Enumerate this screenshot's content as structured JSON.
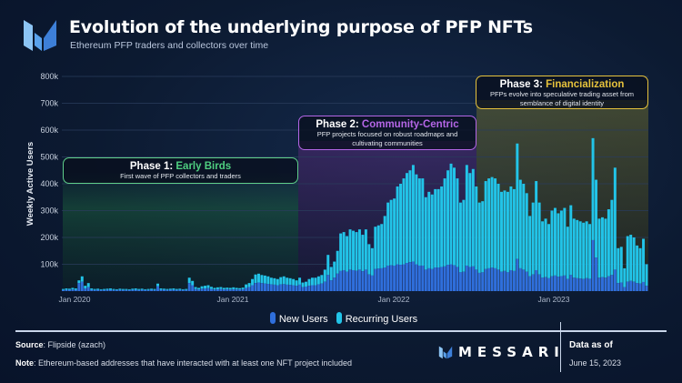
{
  "header": {
    "title": "Evolution of the underlying purpose of PFP NFTs",
    "subtitle": "Ethereum PFP traders and collectors over time"
  },
  "phases": [
    {
      "prefix": "Phase 1:",
      "name": "Early Birds",
      "description": "First wave of PFP collectors and traders",
      "color": "#4fcf80"
    },
    {
      "prefix": "Phase 2:",
      "name": "Community-Centric",
      "description": "PFP projects focused on robust roadmaps and cultivating communities",
      "color": "#b466e6"
    },
    {
      "prefix": "Phase 3:",
      "name": "Financialization",
      "description": "PFPs evolve into speculative trading asset from semblance of digital identity",
      "color": "#e6c23c"
    }
  ],
  "legend": {
    "new": "New Users",
    "recurring": "Recurring Users"
  },
  "footer": {
    "source_label": "Source",
    "source_text": ": Flipside (azach)",
    "note_label": "Note",
    "note_text": ": Ethereum-based addresses that have interacted with at least one NFT project included",
    "brand": "MESSARI",
    "data_as_of_label": "Data as of",
    "data_as_of_date": "June 15, 2023"
  },
  "chart_data": {
    "type": "bar",
    "stacked": true,
    "title": "Evolution of the underlying purpose of PFP NFTs",
    "subtitle": "Ethereum PFP traders and collectors over time",
    "xlabel": "",
    "ylabel": "Weekly Active Users",
    "ylim": [
      0,
      800000
    ],
    "y_ticks": [
      "100k",
      "200k",
      "300k",
      "400k",
      "500k",
      "600k",
      "700k",
      "800k"
    ],
    "x_ticks": [
      "Jan 2020",
      "Jan 2021",
      "Jan 2022",
      "Jan 2023"
    ],
    "grid": true,
    "legend_position": "bottom",
    "units": "thousands",
    "colors": {
      "new": "#2f6fdc",
      "recurring": "#22c4e8"
    },
    "totals": [
      8,
      10,
      9,
      12,
      10,
      40,
      55,
      20,
      30,
      10,
      8,
      9,
      7,
      8,
      9,
      10,
      8,
      7,
      9,
      8,
      8,
      7,
      9,
      10,
      8,
      9,
      7,
      8,
      9,
      8,
      28,
      10,
      9,
      8,
      9,
      10,
      8,
      9,
      7,
      8,
      50,
      38,
      15,
      12,
      18,
      20,
      22,
      16,
      12,
      14,
      15,
      12,
      13,
      12,
      14,
      12,
      11,
      13,
      25,
      30,
      45,
      62,
      65,
      60,
      58,
      55,
      50,
      48,
      45,
      52,
      55,
      50,
      48,
      45,
      40,
      50,
      32,
      35,
      45,
      50,
      50,
      55,
      60,
      80,
      135,
      90,
      110,
      150,
      215,
      220,
      205,
      230,
      225,
      220,
      230,
      210,
      230,
      175,
      160,
      240,
      245,
      250,
      280,
      330,
      340,
      345,
      390,
      400,
      420,
      440,
      450,
      470,
      435,
      420,
      420,
      350,
      370,
      360,
      380,
      380,
      390,
      420,
      450,
      475,
      460,
      420,
      330,
      340,
      470,
      440,
      455,
      390,
      330,
      335,
      410,
      420,
      425,
      420,
      400,
      370,
      375,
      370,
      390,
      380,
      550,
      415,
      400,
      365,
      280,
      330,
      410,
      330,
      260,
      270,
      250,
      300,
      310,
      290,
      300,
      310,
      240,
      320,
      270,
      265,
      260,
      255,
      260,
      250,
      570,
      415,
      270,
      275,
      270,
      305,
      340,
      460,
      160,
      165,
      85,
      205,
      210,
      200,
      170,
      160,
      195,
      100
    ],
    "series": [
      {
        "name": "New Users",
        "values": [
          4,
          5,
          5,
          6,
          5,
          30,
          35,
          10,
          15,
          5,
          4,
          5,
          4,
          4,
          5,
          5,
          4,
          4,
          5,
          4,
          4,
          4,
          5,
          5,
          4,
          5,
          4,
          4,
          5,
          4,
          18,
          5,
          5,
          4,
          5,
          5,
          4,
          5,
          4,
          4,
          30,
          22,
          8,
          6,
          9,
          10,
          11,
          8,
          6,
          7,
          8,
          6,
          7,
          6,
          7,
          6,
          6,
          7,
          12,
          15,
          22,
          30,
          32,
          30,
          28,
          27,
          25,
          24,
          22,
          25,
          26,
          24,
          23,
          22,
          20,
          24,
          15,
          17,
          20,
          22,
          22,
          25,
          28,
          35,
          60,
          40,
          50,
          65,
          75,
          78,
          72,
          80,
          78,
          76,
          80,
          74,
          80,
          62,
          58,
          82,
          84,
          85,
          88,
          95,
          96,
          95,
          100,
          98,
          100,
          105,
          108,
          110,
          100,
          95,
          95,
          80,
          85,
          82,
          88,
          88,
          90,
          92,
          98,
          100,
          96,
          90,
          70,
          72,
          95,
          90,
          92,
          80,
          68,
          70,
          82,
          85,
          88,
          85,
          80,
          72,
          75,
          70,
          78,
          75,
          120,
          85,
          80,
          72,
          55,
          62,
          78,
          62,
          50,
          52,
          48,
          55,
          58,
          54,
          56,
          58,
          45,
          60,
          50,
          48,
          47,
          45,
          48,
          46,
          190,
          125,
          50,
          52,
          50,
          55,
          60,
          80,
          30,
          32,
          15,
          35,
          38,
          35,
          30,
          28,
          34,
          20
        ]
      },
      {
        "name": "Recurring Users",
        "values_from": "totals minus New Users"
      }
    ]
  }
}
